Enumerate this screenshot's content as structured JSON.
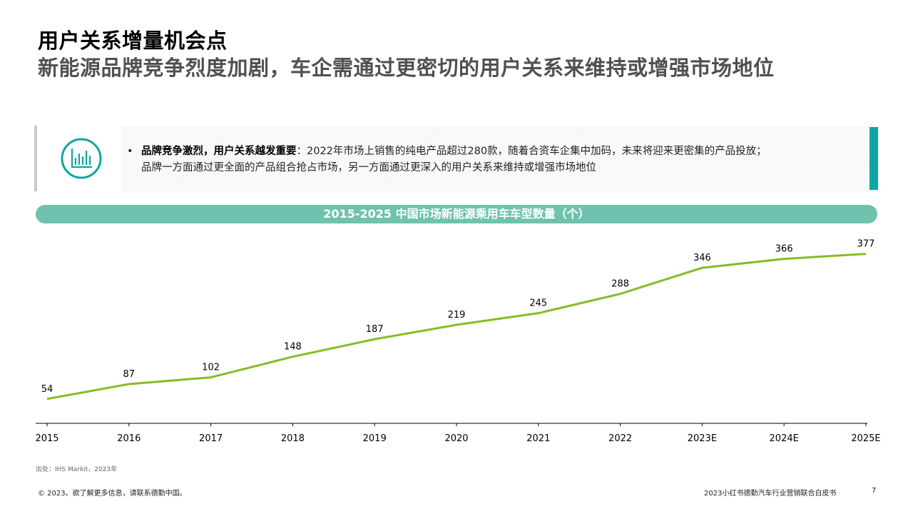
{
  "header": {
    "title": "用户关系增量机会点",
    "subtitle": "新能源品牌竞争烈度加剧，车企需通过更密切的用户关系来维持或增强市场地位"
  },
  "callout": {
    "icon": "bar-chart-circle-icon",
    "bullet": "•",
    "bold_lead": "品牌竞争激烈，用户关系越发重要",
    "line1_rest": "：2022年市场上销售的纯电产品超过280款，随着合资车企集中加码，未来将迎来更密集的产品投放；",
    "line2": "品牌一方面通过更全面的产品组合抢占市场，另一方面通过更深入的用户关系来维持或增强市场地位"
  },
  "colors": {
    "accent_teal": "#0ea5a2",
    "banner": "#6fc2ad",
    "line": "#86bc25"
  },
  "chart_data": {
    "type": "line",
    "title": "2015-2025 中国市场新能源乘用车车型数量（个）",
    "categories": [
      "2015",
      "2016",
      "2017",
      "2018",
      "2019",
      "2020",
      "2021",
      "2022",
      "2023E",
      "2024E",
      "2025E"
    ],
    "values": [
      54,
      87,
      102,
      148,
      187,
      219,
      245,
      288,
      346,
      366,
      377
    ],
    "xlabel": "",
    "ylabel": "",
    "ylim": [
      0,
      400
    ],
    "grid": false,
    "legend": "none"
  },
  "footer": {
    "source": "出处：IHS Markit，2023年",
    "copyright": "© 2023。欲了解更多信息，请联系德勤中国。",
    "doc_title": "2023小红书德勤汽车行业营销联合白皮书",
    "page": "7"
  }
}
